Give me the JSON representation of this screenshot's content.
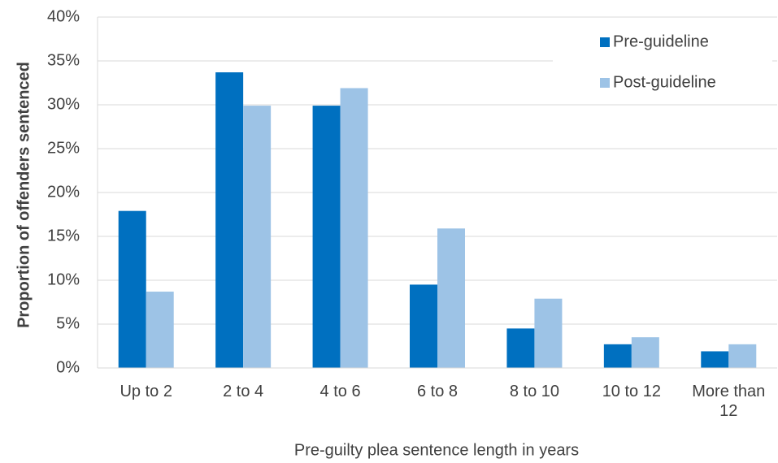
{
  "chart_data": {
    "type": "bar",
    "x_label": "Pre-guilty plea sentence length in years",
    "y_label": "Proportion of offenders sentenced",
    "categories": [
      "Up to 2",
      "2 to 4",
      "4 to 6",
      "6 to 8",
      "8 to 10",
      "10 to 12",
      "More than 12"
    ],
    "series": [
      {
        "name": "Pre-guideline",
        "color": "#0070c0",
        "values": [
          17.9,
          33.7,
          29.9,
          9.5,
          4.5,
          2.7,
          1.9
        ]
      },
      {
        "name": "Post-guideline",
        "color": "#9dc3e6",
        "values": [
          8.7,
          29.9,
          31.9,
          15.9,
          7.9,
          3.5,
          2.7
        ]
      }
    ],
    "ylim": [
      0,
      40
    ],
    "yticks": [
      {
        "value": 0,
        "label": "0%"
      },
      {
        "value": 5,
        "label": "5%"
      },
      {
        "value": 10,
        "label": "10%"
      },
      {
        "value": 15,
        "label": "15%"
      },
      {
        "value": 20,
        "label": "20%"
      },
      {
        "value": 25,
        "label": "25%"
      },
      {
        "value": 30,
        "label": "30%"
      },
      {
        "value": 35,
        "label": "35%"
      },
      {
        "value": 40,
        "label": "40%"
      }
    ],
    "grid": true,
    "legend": "upper right"
  }
}
